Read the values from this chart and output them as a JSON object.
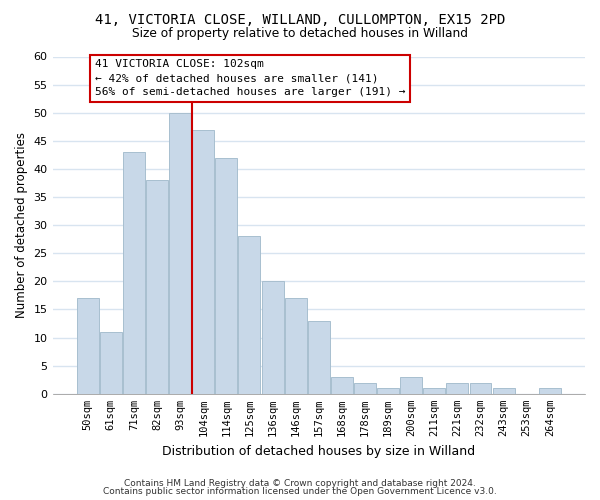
{
  "title1": "41, VICTORIA CLOSE, WILLAND, CULLOMPTON, EX15 2PD",
  "title2": "Size of property relative to detached houses in Willand",
  "xlabel": "Distribution of detached houses by size in Willand",
  "ylabel": "Number of detached properties",
  "bar_labels": [
    "50sqm",
    "61sqm",
    "71sqm",
    "82sqm",
    "93sqm",
    "104sqm",
    "114sqm",
    "125sqm",
    "136sqm",
    "146sqm",
    "157sqm",
    "168sqm",
    "178sqm",
    "189sqm",
    "200sqm",
    "211sqm",
    "221sqm",
    "232sqm",
    "243sqm",
    "253sqm",
    "264sqm"
  ],
  "bar_values": [
    17,
    11,
    43,
    38,
    50,
    47,
    42,
    28,
    20,
    17,
    13,
    3,
    2,
    1,
    3,
    1,
    2,
    2,
    1,
    0,
    1
  ],
  "bar_color": "#c8d8e8",
  "bar_edge_color": "#a8bfcf",
  "vline_x_bar_index": 5,
  "vline_color": "#cc0000",
  "annotation_title": "41 VICTORIA CLOSE: 102sqm",
  "annotation_line1": "← 42% of detached houses are smaller (141)",
  "annotation_line2": "56% of semi-detached houses are larger (191) →",
  "annotation_box_color": "#ffffff",
  "annotation_box_edge": "#cc0000",
  "ylim": [
    0,
    60
  ],
  "yticks": [
    0,
    5,
    10,
    15,
    20,
    25,
    30,
    35,
    40,
    45,
    50,
    55,
    60
  ],
  "footer1": "Contains HM Land Registry data © Crown copyright and database right 2024.",
  "footer2": "Contains public sector information licensed under the Open Government Licence v3.0.",
  "background_color": "#ffffff",
  "grid_color": "#d8e4f0"
}
